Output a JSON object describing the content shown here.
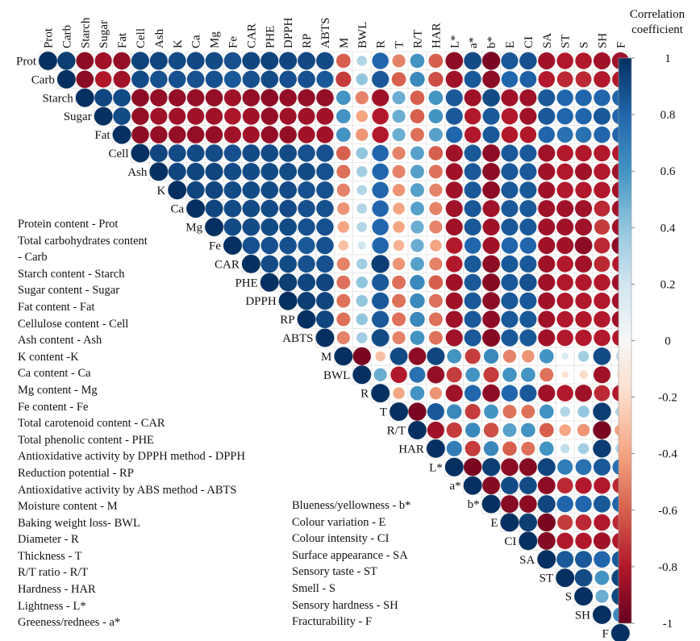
{
  "chart_data": {
    "type": "heatmap",
    "subtype": "correlogram-upper-triangle-circles",
    "variables": [
      "Prot",
      "Carb",
      "Starch",
      "Sugar",
      "Fat",
      "Cell",
      "Ash",
      "K",
      "Ca",
      "Mg",
      "Fe",
      "CAR",
      "PHE",
      "DPPH",
      "RP",
      "ABTS",
      "M",
      "BWL",
      "R",
      "T",
      "R/T",
      "HAR",
      "L*",
      "a*",
      "b*",
      "E",
      "CI",
      "SA",
      "ST",
      "S",
      "SH",
      "F"
    ],
    "values": [
      [
        1.0,
        0.95,
        -0.9,
        -0.85,
        -0.88,
        0.93,
        0.92,
        0.9,
        0.91,
        0.9,
        0.88,
        0.92,
        0.93,
        0.92,
        0.91,
        0.9,
        -0.6,
        0.3,
        0.8,
        -0.5,
        0.6,
        -0.6,
        -0.9,
        0.9,
        -0.95,
        0.85,
        0.88,
        -0.85,
        -0.8,
        -0.8,
        -0.85,
        -0.85
      ],
      [
        null,
        1.0,
        -0.9,
        -0.8,
        -0.85,
        0.9,
        0.88,
        0.88,
        0.88,
        0.88,
        0.85,
        0.88,
        0.9,
        0.88,
        0.88,
        0.85,
        -0.7,
        0.4,
        0.85,
        -0.6,
        0.65,
        -0.65,
        -0.85,
        0.85,
        -0.9,
        0.8,
        0.82,
        -0.8,
        -0.75,
        -0.75,
        -0.8,
        -0.8
      ],
      [
        null,
        null,
        1.0,
        0.92,
        0.9,
        -0.9,
        -0.88,
        -0.88,
        -0.88,
        -0.88,
        -0.85,
        -0.88,
        -0.9,
        -0.88,
        -0.88,
        -0.88,
        0.6,
        -0.5,
        -0.85,
        0.5,
        -0.6,
        0.6,
        0.85,
        -0.85,
        0.9,
        -0.85,
        -0.85,
        0.85,
        0.8,
        0.8,
        0.8,
        0.8
      ],
      [
        null,
        null,
        null,
        1.0,
        0.9,
        -0.88,
        -0.85,
        -0.85,
        -0.85,
        -0.85,
        -0.82,
        -0.85,
        -0.88,
        -0.85,
        -0.85,
        -0.85,
        0.6,
        -0.4,
        -0.8,
        0.5,
        -0.6,
        0.6,
        0.85,
        -0.8,
        0.85,
        -0.8,
        -0.85,
        0.85,
        0.8,
        0.8,
        0.85,
        0.8
      ],
      [
        null,
        null,
        null,
        null,
        1.0,
        -0.9,
        -0.88,
        -0.88,
        -0.88,
        -0.88,
        -0.85,
        -0.85,
        -0.88,
        -0.88,
        -0.85,
        -0.85,
        0.6,
        -0.45,
        -0.8,
        0.5,
        -0.55,
        0.55,
        0.8,
        -0.8,
        0.85,
        -0.8,
        -0.8,
        0.8,
        0.75,
        0.75,
        0.8,
        0.8
      ],
      [
        null,
        null,
        null,
        null,
        null,
        1.0,
        0.92,
        0.9,
        0.9,
        0.9,
        0.88,
        0.9,
        0.9,
        0.9,
        0.88,
        0.88,
        -0.6,
        0.4,
        0.8,
        -0.5,
        0.55,
        -0.6,
        -0.85,
        0.85,
        -0.9,
        0.85,
        0.85,
        -0.85,
        -0.8,
        -0.8,
        -0.8,
        -0.8
      ],
      [
        null,
        null,
        null,
        null,
        null,
        null,
        1.0,
        0.92,
        0.92,
        0.92,
        0.9,
        0.9,
        0.9,
        0.9,
        0.9,
        0.88,
        -0.55,
        0.35,
        0.8,
        -0.5,
        0.55,
        -0.55,
        -0.85,
        0.85,
        -0.9,
        0.85,
        0.85,
        -0.85,
        -0.8,
        -0.85,
        -0.8,
        -0.85
      ],
      [
        null,
        null,
        null,
        null,
        null,
        null,
        null,
        1.0,
        0.92,
        0.92,
        0.9,
        0.9,
        0.9,
        0.9,
        0.88,
        0.88,
        -0.5,
        0.3,
        0.8,
        -0.45,
        0.55,
        -0.5,
        -0.85,
        0.85,
        -0.9,
        0.85,
        0.85,
        -0.85,
        -0.8,
        -0.8,
        -0.8,
        -0.85
      ],
      [
        null,
        null,
        null,
        null,
        null,
        null,
        null,
        null,
        1.0,
        0.92,
        0.9,
        0.9,
        0.9,
        0.9,
        0.88,
        0.88,
        -0.45,
        0.3,
        0.8,
        -0.4,
        0.55,
        -0.5,
        -0.85,
        0.85,
        -0.85,
        0.85,
        0.85,
        -0.85,
        -0.85,
        -0.85,
        -0.75,
        -0.85
      ],
      [
        null,
        null,
        null,
        null,
        null,
        null,
        null,
        null,
        null,
        1.0,
        0.9,
        0.9,
        0.9,
        0.9,
        0.88,
        0.88,
        -0.4,
        0.3,
        0.8,
        -0.4,
        0.5,
        -0.5,
        -0.85,
        0.85,
        -0.85,
        0.85,
        0.85,
        -0.85,
        -0.85,
        -0.85,
        -0.7,
        -0.85
      ],
      [
        null,
        null,
        null,
        null,
        null,
        null,
        null,
        null,
        null,
        null,
        1.0,
        0.88,
        0.88,
        0.88,
        0.85,
        0.88,
        -0.3,
        0.2,
        0.8,
        -0.35,
        0.5,
        -0.4,
        -0.8,
        0.8,
        -0.85,
        0.8,
        0.8,
        -0.85,
        -0.85,
        -0.9,
        -0.75,
        -0.9
      ],
      [
        null,
        null,
        null,
        null,
        null,
        null,
        null,
        null,
        null,
        null,
        null,
        1.0,
        0.9,
        0.9,
        0.88,
        0.88,
        -0.5,
        0.35,
        0.95,
        -0.45,
        0.55,
        -0.5,
        -0.8,
        0.85,
        -0.9,
        0.85,
        0.85,
        -0.85,
        -0.8,
        -0.85,
        -0.75,
        -0.8
      ],
      [
        null,
        null,
        null,
        null,
        null,
        null,
        null,
        null,
        null,
        null,
        null,
        null,
        1.0,
        0.95,
        0.92,
        0.92,
        -0.55,
        0.4,
        0.85,
        -0.55,
        0.65,
        -0.6,
        -0.85,
        0.85,
        -0.92,
        0.85,
        0.88,
        -0.85,
        -0.8,
        -0.8,
        -0.8,
        -0.85
      ],
      [
        null,
        null,
        null,
        null,
        null,
        null,
        null,
        null,
        null,
        null,
        null,
        null,
        null,
        1.0,
        0.95,
        0.92,
        -0.55,
        0.4,
        0.85,
        -0.55,
        0.65,
        -0.55,
        -0.85,
        0.85,
        -0.9,
        0.85,
        0.85,
        -0.85,
        -0.8,
        -0.8,
        -0.8,
        -0.85
      ],
      [
        null,
        null,
        null,
        null,
        null,
        null,
        null,
        null,
        null,
        null,
        null,
        null,
        null,
        null,
        1.0,
        0.92,
        -0.55,
        0.4,
        0.85,
        -0.55,
        0.65,
        -0.55,
        -0.85,
        0.85,
        -0.9,
        0.85,
        0.85,
        -0.85,
        -0.8,
        -0.8,
        -0.8,
        -0.85
      ],
      [
        null,
        null,
        null,
        null,
        null,
        null,
        null,
        null,
        null,
        null,
        null,
        null,
        null,
        null,
        null,
        1.0,
        -0.5,
        0.35,
        0.9,
        -0.5,
        0.6,
        -0.55,
        -0.85,
        0.85,
        -0.92,
        0.85,
        0.85,
        -0.85,
        -0.8,
        -0.8,
        -0.8,
        -0.8
      ],
      [
        null,
        null,
        null,
        null,
        null,
        null,
        null,
        null,
        null,
        null,
        null,
        null,
        null,
        null,
        null,
        null,
        1.0,
        -0.95,
        -0.3,
        0.9,
        -0.9,
        0.92,
        0.6,
        -0.7,
        0.65,
        -0.5,
        -0.45,
        0.6,
        0.15,
        0.35,
        0.9,
        0.25
      ],
      [
        null,
        null,
        null,
        null,
        null,
        null,
        null,
        null,
        null,
        null,
        null,
        null,
        null,
        null,
        null,
        null,
        null,
        1.0,
        0.5,
        -0.8,
        0.75,
        -0.88,
        -0.7,
        0.6,
        -0.7,
        0.6,
        0.6,
        -0.55,
        -0.15,
        -0.2,
        -0.85,
        -0.15
      ],
      [
        null,
        null,
        null,
        null,
        null,
        null,
        null,
        null,
        null,
        null,
        null,
        null,
        null,
        null,
        null,
        null,
        null,
        null,
        1.0,
        -0.4,
        0.6,
        -0.45,
        -0.85,
        0.8,
        -0.9,
        0.8,
        0.85,
        -0.85,
        -0.8,
        -0.85,
        -0.75,
        -0.8
      ],
      [
        null,
        null,
        null,
        null,
        null,
        null,
        null,
        null,
        null,
        null,
        null,
        null,
        null,
        null,
        null,
        null,
        null,
        null,
        null,
        1.0,
        -0.95,
        0.85,
        0.65,
        -0.7,
        0.6,
        -0.55,
        -0.55,
        0.6,
        0.3,
        0.4,
        0.95,
        0.3
      ],
      [
        null,
        null,
        null,
        null,
        null,
        null,
        null,
        null,
        null,
        null,
        null,
        null,
        null,
        null,
        null,
        null,
        null,
        null,
        null,
        null,
        1.0,
        -0.85,
        -0.7,
        0.65,
        -0.65,
        0.55,
        0.6,
        -0.6,
        -0.4,
        -0.45,
        -0.95,
        -0.4
      ],
      [
        null,
        null,
        null,
        null,
        null,
        null,
        null,
        null,
        null,
        null,
        null,
        null,
        null,
        null,
        null,
        null,
        null,
        null,
        null,
        null,
        null,
        1.0,
        0.7,
        -0.7,
        0.65,
        -0.6,
        -0.55,
        0.6,
        0.25,
        0.35,
        0.95,
        0.3
      ],
      [
        null,
        null,
        null,
        null,
        null,
        null,
        null,
        null,
        null,
        null,
        null,
        null,
        null,
        null,
        null,
        null,
        null,
        null,
        null,
        null,
        null,
        null,
        1.0,
        -0.95,
        0.95,
        -0.9,
        -0.92,
        0.92,
        0.7,
        0.75,
        0.85,
        0.75
      ],
      [
        null,
        null,
        null,
        null,
        null,
        null,
        null,
        null,
        null,
        null,
        null,
        null,
        null,
        null,
        null,
        null,
        null,
        null,
        null,
        null,
        null,
        null,
        null,
        1.0,
        -0.92,
        0.9,
        0.9,
        -0.9,
        -0.75,
        -0.8,
        -0.8,
        -0.75
      ],
      [
        null,
        null,
        null,
        null,
        null,
        null,
        null,
        null,
        null,
        null,
        null,
        null,
        null,
        null,
        null,
        null,
        null,
        null,
        null,
        null,
        null,
        null,
        null,
        null,
        1.0,
        -0.92,
        -0.9,
        0.92,
        0.8,
        0.8,
        0.85,
        0.8
      ],
      [
        null,
        null,
        null,
        null,
        null,
        null,
        null,
        null,
        null,
        null,
        null,
        null,
        null,
        null,
        null,
        null,
        null,
        null,
        null,
        null,
        null,
        null,
        null,
        null,
        null,
        1.0,
        0.95,
        -0.95,
        -0.7,
        -0.75,
        -0.8,
        -0.75
      ],
      [
        null,
        null,
        null,
        null,
        null,
        null,
        null,
        null,
        null,
        null,
        null,
        null,
        null,
        null,
        null,
        null,
        null,
        null,
        null,
        null,
        null,
        null,
        null,
        null,
        null,
        null,
        1.0,
        -0.92,
        -0.8,
        -0.8,
        -0.85,
        -0.8
      ],
      [
        null,
        null,
        null,
        null,
        null,
        null,
        null,
        null,
        null,
        null,
        null,
        null,
        null,
        null,
        null,
        null,
        null,
        null,
        null,
        null,
        null,
        null,
        null,
        null,
        null,
        null,
        null,
        1.0,
        0.85,
        0.85,
        0.8,
        0.85
      ],
      [
        null,
        null,
        null,
        null,
        null,
        null,
        null,
        null,
        null,
        null,
        null,
        null,
        null,
        null,
        null,
        null,
        null,
        null,
        null,
        null,
        null,
        null,
        null,
        null,
        null,
        null,
        null,
        null,
        1.0,
        0.9,
        0.6,
        0.92
      ],
      [
        null,
        null,
        null,
        null,
        null,
        null,
        null,
        null,
        null,
        null,
        null,
        null,
        null,
        null,
        null,
        null,
        null,
        null,
        null,
        null,
        null,
        null,
        null,
        null,
        null,
        null,
        null,
        null,
        null,
        1.0,
        0.5,
        0.92
      ],
      [
        null,
        null,
        null,
        null,
        null,
        null,
        null,
        null,
        null,
        null,
        null,
        null,
        null,
        null,
        null,
        null,
        null,
        null,
        null,
        null,
        null,
        null,
        null,
        null,
        null,
        null,
        null,
        null,
        null,
        null,
        1.0,
        0.65
      ],
      [
        null,
        null,
        null,
        null,
        null,
        null,
        null,
        null,
        null,
        null,
        null,
        null,
        null,
        null,
        null,
        null,
        null,
        null,
        null,
        null,
        null,
        null,
        null,
        null,
        null,
        null,
        null,
        null,
        null,
        null,
        null,
        1.0
      ]
    ],
    "colorbar": {
      "title_lines": [
        "Correlation",
        "coefficient"
      ],
      "range": [
        -1,
        1
      ],
      "ticks": [
        "1",
        "0.8",
        "0.6",
        "0.4",
        "0.2",
        "0",
        "-0.2",
        "-0.4",
        "-0.6",
        "-0.8",
        "-1"
      ],
      "colors": [
        "#67001f",
        "#b2182b",
        "#d6604d",
        "#f4a582",
        "#fddbc7",
        "#f7f7f7",
        "#d1e5f0",
        "#92c5de",
        "#4393c3",
        "#2166ac",
        "#053061"
      ]
    },
    "title": "",
    "xlabel": "",
    "ylabel": ""
  },
  "legend_left": [
    "Protein content - Prot",
    "Total carbohydrates content",
    "- Carb",
    "Starch content - Starch",
    "Sugar content - Sugar",
    "Fat content - Fat",
    "Cellulose content - Cell",
    "Ash content - Ash",
    "K content -K",
    "Ca content - Ca",
    "Mg content - Mg",
    "Fe content - Fe",
    "Total carotenoid content - CAR",
    "Total phenolic content - PHE",
    "Antioxidative activity by DPPH method - DPPH",
    "Reduction potential - RP",
    "Antioxidative activity by ABS method - ABTS",
    "Moisture content - M",
    "Baking weight loss- BWL",
    "Diameter - R",
    "Thickness - T",
    "R/T ratio - R/T",
    "Hardness - HAR",
    "Lightness - L*",
    "Greeness/rednees - a*"
  ],
  "legend_right": [
    "Blueness/yellowness - b*",
    "Colour variation - E",
    "Colour intensity - CI",
    "Surface appearance - SA",
    "Sensory taste - ST",
    "Smell - S",
    "Sensory hardness - SH",
    "Fracturability - F"
  ]
}
